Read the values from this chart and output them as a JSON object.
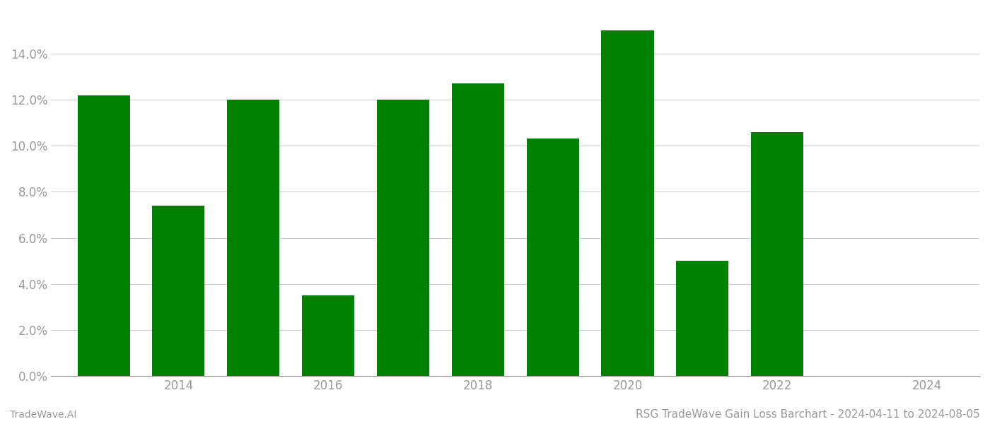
{
  "years": [
    2013,
    2014,
    2015,
    2016,
    2017,
    2018,
    2019,
    2020,
    2021,
    2022,
    2023
  ],
  "values": [
    0.122,
    0.074,
    0.12,
    0.035,
    0.12,
    0.127,
    0.103,
    0.15,
    0.05,
    0.106,
    0.0
  ],
  "bar_color": "#008000",
  "title": "RSG TradeWave Gain Loss Barchart - 2024-04-11 to 2024-08-05",
  "watermark": "TradeWave.AI",
  "ylim": [
    0,
    0.155
  ],
  "ytick_values": [
    0.0,
    0.02,
    0.04,
    0.06,
    0.08,
    0.1,
    0.12,
    0.14
  ],
  "xlim": [
    2012.3,
    2024.7
  ],
  "xtick_values": [
    2014,
    2016,
    2018,
    2020,
    2022,
    2024
  ],
  "background_color": "#ffffff",
  "grid_color": "#cccccc",
  "title_fontsize": 11,
  "watermark_fontsize": 10,
  "axis_label_color": "#999999",
  "bar_width": 0.7
}
